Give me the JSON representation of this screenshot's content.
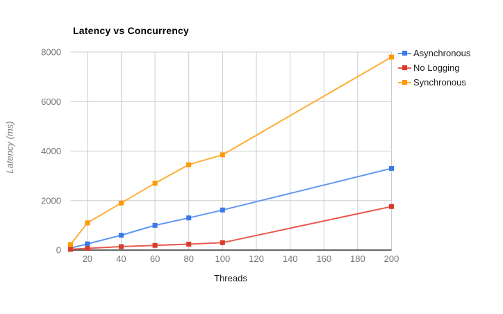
{
  "chart_data": {
    "type": "line",
    "title": "Latency vs Concurrency",
    "xlabel": "Threads",
    "ylabel": "Latency (ms)",
    "x": [
      10,
      20,
      40,
      60,
      80,
      100,
      200
    ],
    "series": [
      {
        "name": "Asynchronous",
        "marker_color": "#3b78e7",
        "line_color": "#5e97f6",
        "values": [
          80,
          250,
          600,
          1000,
          1300,
          1620,
          3300
        ]
      },
      {
        "name": "No Logging",
        "marker_color": "#db3b2b",
        "line_color": "#e8584b",
        "values": [
          30,
          70,
          140,
          190,
          240,
          300,
          1760
        ]
      },
      {
        "name": "Synchronous",
        "marker_color": "#ff9900",
        "line_color": "#ffad33",
        "values": [
          220,
          1100,
          1900,
          2700,
          3450,
          3850,
          7800
        ]
      }
    ],
    "xticks": [
      20,
      40,
      60,
      80,
      100,
      120,
      140,
      160,
      180,
      200
    ],
    "yticks": [
      0,
      2000,
      4000,
      6000,
      8000
    ],
    "xlim": [
      10,
      200
    ],
    "ylim": [
      0,
      8000
    ],
    "grid": true,
    "legend_position": "right"
  },
  "style": {
    "grid_color": "#cccccc",
    "axis_color": "#333333",
    "tick_label_color": "#757575",
    "background": "#ffffff"
  }
}
